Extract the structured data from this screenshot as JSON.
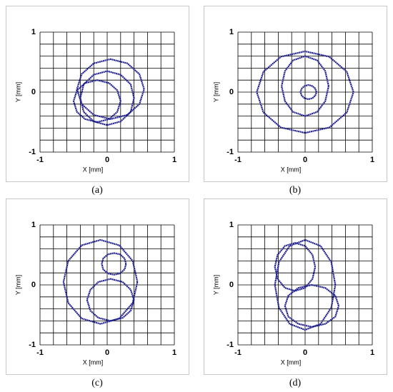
{
  "chart_data": [
    {
      "type": "line",
      "caption": "(a)",
      "xlabel": "X [mm]",
      "ylabel": "Y [mm]",
      "xlim": [
        -1,
        1
      ],
      "ylim": [
        -1,
        1
      ],
      "xticks": [
        -1,
        0,
        1
      ],
      "yticks": [
        -1,
        0,
        1
      ],
      "xgrid": [
        -1,
        -0.8,
        -0.6,
        -0.4,
        -0.2,
        0,
        0.2,
        0.4,
        0.6,
        0.8,
        1
      ],
      "ygrid": [
        -1,
        -0.8,
        -0.6,
        -0.4,
        -0.2,
        0,
        0.2,
        0.4,
        0.6,
        0.8,
        1
      ],
      "series": [
        {
          "color": "#1f1f8f",
          "x": [
            0.55,
            0.48,
            0.3,
            0.05,
            -0.2,
            -0.38,
            -0.45,
            -0.38,
            -0.2,
            0.05,
            0.3,
            0.48,
            0.55
          ],
          "y": [
            0.05,
            0.3,
            0.48,
            0.55,
            0.48,
            0.3,
            0.05,
            -0.2,
            -0.38,
            -0.45,
            -0.38,
            -0.2,
            0.05
          ]
        },
        {
          "color": "#1f1f8f",
          "x": [
            0.2,
            0.15,
            0.03,
            -0.15,
            -0.33,
            -0.45,
            -0.5,
            -0.45,
            -0.33,
            -0.15,
            0.03,
            0.15,
            0.2
          ],
          "y": [
            -0.15,
            0.03,
            0.15,
            0.2,
            0.15,
            0.03,
            -0.15,
            -0.33,
            -0.45,
            -0.5,
            -0.45,
            -0.33,
            -0.15
          ]
        },
        {
          "color": "#1f1f8f",
          "x": [
            0.4,
            0.35,
            0.2,
            0,
            -0.2,
            -0.35,
            -0.4,
            -0.35,
            -0.2,
            0,
            0.2,
            0.35,
            0.4
          ],
          "y": [
            -0.1,
            0.13,
            0.29,
            0.35,
            0.29,
            0.13,
            -0.1,
            -0.33,
            -0.49,
            -0.55,
            -0.49,
            -0.33,
            -0.1
          ]
        }
      ]
    },
    {
      "type": "line",
      "caption": "(b)",
      "xlabel": "X [mm]",
      "ylabel": "Y [mm]",
      "xlim": [
        -1,
        1
      ],
      "ylim": [
        -1,
        1
      ],
      "xticks": [
        -1,
        0,
        1
      ],
      "yticks": [
        -1,
        0,
        1
      ],
      "xgrid": [
        -1,
        -0.8,
        -0.6,
        -0.4,
        -0.2,
        0,
        0.2,
        0.4,
        0.6,
        0.8,
        1
      ],
      "ygrid": [
        -1,
        -0.8,
        -0.6,
        -0.4,
        -0.2,
        0,
        0.2,
        0.4,
        0.6,
        0.8,
        1
      ],
      "series": [
        {
          "color": "#1f1f8f",
          "x": [
            0.72,
            0.62,
            0.36,
            0,
            -0.36,
            -0.62,
            -0.72,
            -0.62,
            -0.36,
            0,
            0.36,
            0.62,
            0.72
          ],
          "y": [
            0,
            0.34,
            0.59,
            0.68,
            0.59,
            0.34,
            0,
            -0.34,
            -0.59,
            -0.68,
            -0.59,
            -0.34,
            0
          ]
        },
        {
          "color": "#1f1f8f",
          "x": [
            0.17,
            0.15,
            0.11,
            0.05,
            -0.01,
            -0.05,
            -0.07,
            -0.05,
            -0.01,
            0.05,
            0.11,
            0.15,
            0.17
          ],
          "y": [
            0,
            0.06,
            0.1,
            0.12,
            0.1,
            0.06,
            0,
            -0.06,
            -0.1,
            -0.12,
            -0.1,
            -0.06,
            0
          ]
        },
        {
          "color": "#1f1f8f",
          "x": [
            0.35,
            0.3,
            0.18,
            0,
            -0.18,
            -0.3,
            -0.35,
            -0.3,
            -0.18,
            0,
            0.18,
            0.3,
            0.35
          ],
          "y": [
            0.1,
            0.35,
            0.53,
            0.6,
            0.53,
            0.35,
            0.1,
            -0.15,
            -0.33,
            -0.4,
            -0.33,
            -0.15,
            0.1
          ]
        }
      ]
    },
    {
      "type": "line",
      "caption": "(c)",
      "xlabel": "X [mm]",
      "ylabel": "Y [mm]",
      "xlim": [
        -1,
        1
      ],
      "ylim": [
        -1,
        1
      ],
      "xticks": [
        -1,
        0,
        1
      ],
      "yticks": [
        -1,
        0,
        1
      ],
      "xgrid": [
        -1,
        -0.8,
        -0.6,
        -0.4,
        -0.2,
        0,
        0.2,
        0.4,
        0.6,
        0.8,
        1
      ],
      "ygrid": [
        -1,
        -0.8,
        -0.6,
        -0.4,
        -0.2,
        0,
        0.2,
        0.4,
        0.6,
        0.8,
        1
      ],
      "series": [
        {
          "color": "#1f1f8f",
          "x": [
            0.45,
            0.38,
            0.18,
            -0.1,
            -0.38,
            -0.58,
            -0.65,
            -0.58,
            -0.38,
            -0.1,
            0.18,
            0.38,
            0.45
          ],
          "y": [
            0.05,
            0.4,
            0.66,
            0.75,
            0.66,
            0.4,
            0.05,
            -0.3,
            -0.56,
            -0.65,
            -0.56,
            -0.3,
            0.05
          ]
        },
        {
          "color": "#1f1f8f",
          "x": [
            0.4,
            0.35,
            0.23,
            0.05,
            -0.13,
            -0.25,
            -0.3,
            -0.25,
            -0.13,
            0.05,
            0.23,
            0.35,
            0.4
          ],
          "y": [
            -0.25,
            -0.08,
            0.05,
            0.1,
            0.05,
            -0.08,
            -0.25,
            -0.43,
            -0.55,
            -0.6,
            -0.55,
            -0.43,
            -0.25
          ]
        },
        {
          "color": "#1f1f8f",
          "x": [
            0.28,
            0.26,
            0.19,
            0.1,
            0.01,
            -0.06,
            -0.08,
            -0.06,
            0.01,
            0.1,
            0.19,
            0.26,
            0.28
          ],
          "y": [
            0.35,
            0.44,
            0.51,
            0.53,
            0.51,
            0.44,
            0.35,
            0.26,
            0.19,
            0.17,
            0.19,
            0.26,
            0.35
          ]
        }
      ]
    },
    {
      "type": "line",
      "caption": "(d)",
      "xlabel": "X [mm]",
      "ylabel": "Y [mm]",
      "xlim": [
        -1,
        1
      ],
      "ylim": [
        -1,
        1
      ],
      "xticks": [
        -1,
        0,
        1
      ],
      "yticks": [
        -1,
        0,
        1
      ],
      "xgrid": [
        -1,
        -0.8,
        -0.6,
        -0.4,
        -0.2,
        0,
        0.2,
        0.4,
        0.6,
        0.8,
        1
      ],
      "ygrid": [
        -1,
        -0.8,
        -0.6,
        -0.4,
        -0.2,
        0,
        0.2,
        0.4,
        0.6,
        0.8,
        1
      ],
      "series": [
        {
          "color": "#1f1f8f",
          "x": [
            0.15,
            0.11,
            0,
            -0.15,
            -0.3,
            -0.41,
            -0.45,
            -0.41,
            -0.3,
            -0.15,
            0,
            0.11,
            0.15
          ],
          "y": [
            0.3,
            0.5,
            0.65,
            0.7,
            0.65,
            0.5,
            0.3,
            0.1,
            -0.05,
            -0.1,
            -0.05,
            0.1,
            0.3
          ]
        },
        {
          "color": "#1f1f8f",
          "x": [
            0.5,
            0.45,
            0.3,
            0.1,
            -0.1,
            -0.25,
            -0.3,
            -0.25,
            -0.1,
            0.1,
            0.3,
            0.45,
            0.5
          ],
          "y": [
            -0.35,
            -0.18,
            -0.05,
            0,
            -0.05,
            -0.18,
            -0.35,
            -0.53,
            -0.65,
            -0.7,
            -0.65,
            -0.53,
            -0.35
          ]
        },
        {
          "color": "#1f1f8f",
          "x": [
            0.45,
            0.39,
            0.23,
            0,
            -0.23,
            -0.39,
            -0.45,
            -0.39,
            -0.23,
            0,
            0.23,
            0.39,
            0.45
          ],
          "y": [
            0,
            0.38,
            0.65,
            0.75,
            0.65,
            0.38,
            0,
            -0.38,
            -0.65,
            -0.75,
            -0.65,
            -0.38,
            0
          ]
        }
      ]
    }
  ]
}
